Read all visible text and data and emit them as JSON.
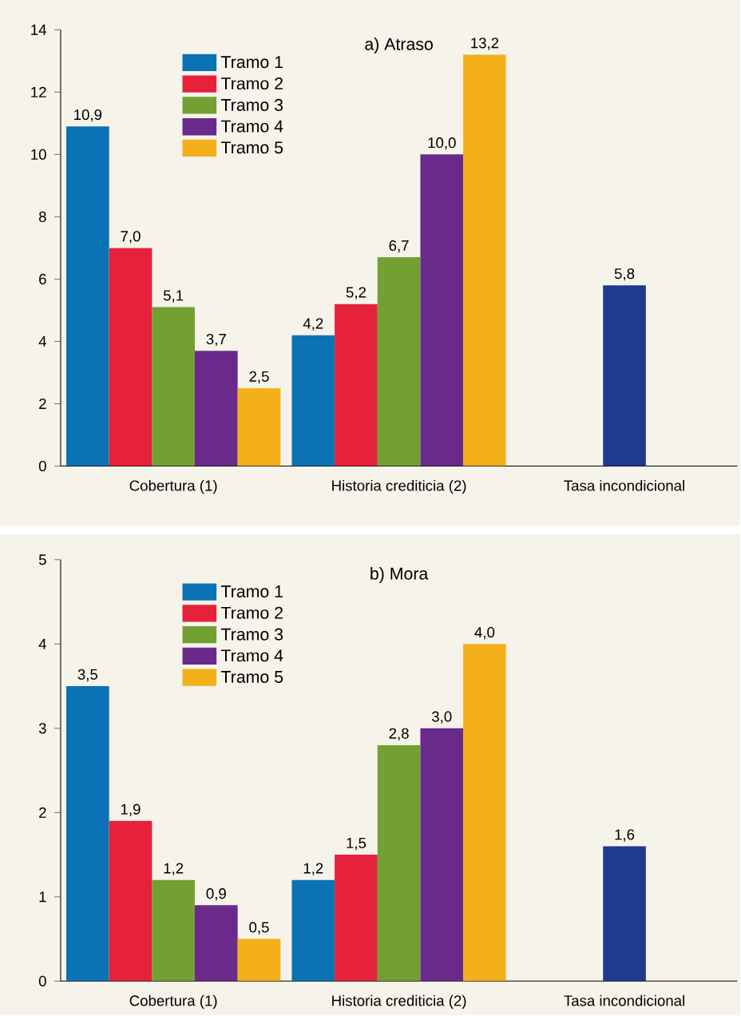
{
  "chart_data": [
    {
      "type": "bar",
      "title": "a) Atraso",
      "categories": [
        "Cobertura (1)",
        "Historia crediticia (2)",
        "Tasa incondicional"
      ],
      "ylim": [
        0,
        14
      ],
      "yticks": [
        0,
        2,
        4,
        6,
        8,
        10,
        12,
        14
      ],
      "legend": "top left",
      "series": [
        {
          "name": "Tramo 1",
          "color": "#0b72b5",
          "values": [
            10.9,
            4.2,
            null
          ],
          "value_labels": [
            "10,9",
            "4,2",
            null
          ]
        },
        {
          "name": "Tramo 2",
          "color": "#e5213b",
          "values": [
            7.0,
            5.2,
            null
          ],
          "value_labels": [
            "7,0",
            "5,2",
            null
          ]
        },
        {
          "name": "Tramo 3",
          "color": "#72a033",
          "values": [
            5.1,
            6.7,
            null
          ],
          "value_labels": [
            "5,1",
            "6,7",
            null
          ]
        },
        {
          "name": "Tramo 4",
          "color": "#6a2a8b",
          "values": [
            3.7,
            10.0,
            null
          ],
          "value_labels": [
            "3,7",
            "10,0",
            null
          ]
        },
        {
          "name": "Tramo 5",
          "color": "#f3b01a",
          "values": [
            2.5,
            13.2,
            null
          ],
          "value_labels": [
            "2,5",
            "13,2",
            null
          ]
        },
        {
          "color": "#1e3b8e",
          "values": [
            null,
            null,
            5.8
          ],
          "value_labels": [
            null,
            null,
            "5,8"
          ]
        }
      ]
    },
    {
      "type": "bar",
      "title": "b) Mora",
      "categories": [
        "Cobertura (1)",
        "Historia crediticia (2)",
        "Tasa incondicional"
      ],
      "ylim": [
        0,
        5
      ],
      "yticks": [
        0,
        1,
        2,
        3,
        4,
        5
      ],
      "legend": "top left",
      "series": [
        {
          "name": "Tramo 1",
          "color": "#0b72b5",
          "values": [
            3.5,
            1.2,
            null
          ],
          "value_labels": [
            "3,5",
            "1,2",
            null
          ]
        },
        {
          "name": "Tramo 2",
          "color": "#e5213b",
          "values": [
            1.9,
            1.5,
            null
          ],
          "value_labels": [
            "1,9",
            "1,5",
            null
          ]
        },
        {
          "name": "Tramo 3",
          "color": "#72a033",
          "values": [
            1.2,
            2.8,
            null
          ],
          "value_labels": [
            "1,2",
            "2,8",
            null
          ]
        },
        {
          "name": "Tramo 4",
          "color": "#6a2a8b",
          "values": [
            0.9,
            3.0,
            null
          ],
          "value_labels": [
            "0,9",
            "3,0",
            null
          ]
        },
        {
          "name": "Tramo 5",
          "color": "#f3b01a",
          "values": [
            0.5,
            4.0,
            null
          ],
          "value_labels": [
            "0,5",
            "4,0",
            null
          ]
        },
        {
          "color": "#1e3b8e",
          "values": [
            null,
            null,
            1.6
          ],
          "value_labels": [
            null,
            null,
            "1,6"
          ]
        }
      ]
    }
  ]
}
